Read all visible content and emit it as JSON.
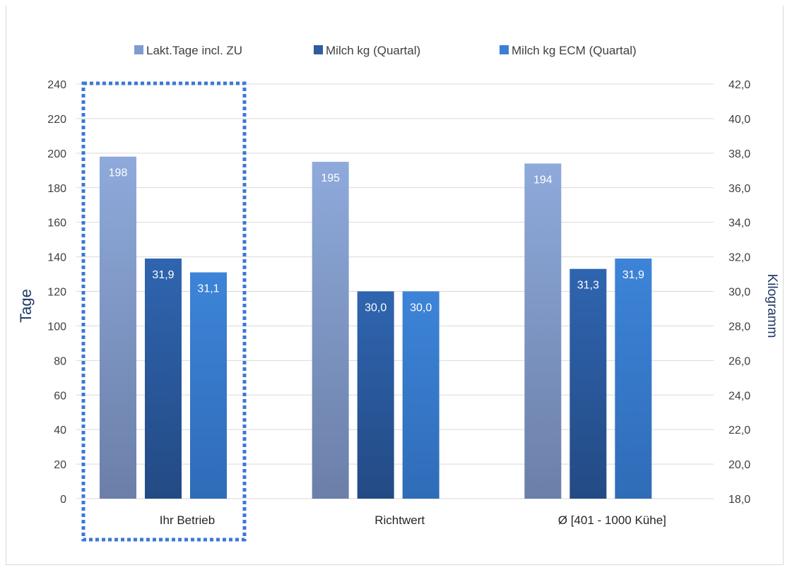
{
  "chart_data": {
    "type": "bar",
    "categories": [
      "Ihr Betrieb",
      "Richtwert",
      "Ø [401 - 1000 Kühe]"
    ],
    "series": [
      {
        "name": "Lakt.Tage incl. ZU",
        "axis": "left",
        "values": [
          198,
          195,
          194
        ],
        "labels": [
          "198",
          "195",
          "194"
        ],
        "color": "#7f9ccf"
      },
      {
        "name": "Milch kg (Quartal)",
        "axis": "right",
        "values": [
          31.9,
          30.0,
          31.3
        ],
        "labels": [
          "31,9",
          "30,0",
          "31,3"
        ],
        "color": "#2e5d9f"
      },
      {
        "name": "Milch kg ECM (Quartal)",
        "axis": "right",
        "values": [
          31.1,
          30.0,
          31.9
        ],
        "labels": [
          "31,1",
          "30,0",
          "31,9"
        ],
        "color": "#3c7fd4"
      }
    ],
    "ylabel": "Tage",
    "y2label": "Kilogramm",
    "ylim": [
      0,
      240
    ],
    "y2lim": [
      18,
      42
    ],
    "yticks": [
      "0",
      "20",
      "40",
      "60",
      "80",
      "100",
      "120",
      "140",
      "160",
      "180",
      "200",
      "220",
      "240"
    ],
    "y2ticks": [
      "18,0",
      "20,0",
      "22,0",
      "24,0",
      "26,0",
      "28,0",
      "30,0",
      "32,0",
      "34,0",
      "36,0",
      "38,0",
      "40,0",
      "42,0"
    ],
    "grid": true,
    "legend_position": "top",
    "highlight_category": "Ihr Betrieb"
  }
}
